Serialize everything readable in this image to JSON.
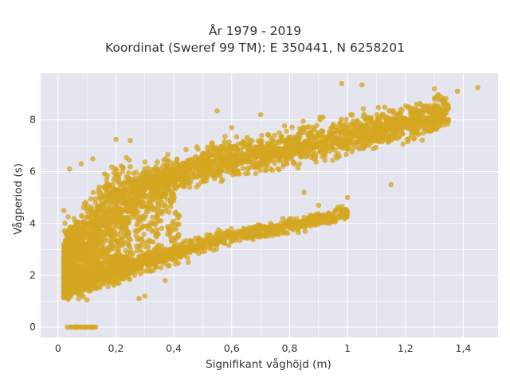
{
  "chart_data": {
    "type": "scatter",
    "title_line1": "År 1979 - 2019",
    "title_line2": "Koordinat (Sweref 99 TM): E 350441, N 6258201",
    "xlabel": "Signifikant våghöjd (m)",
    "ylabel": "Vågperiod (s)",
    "xlim": [
      -0.06,
      1.52
    ],
    "ylim": [
      -0.4,
      9.8
    ],
    "xticks": [
      0,
      0.2,
      0.4,
      0.6,
      0.8,
      1.0,
      1.2,
      1.4
    ],
    "xtick_labels": [
      "0",
      "0,2",
      "0,4",
      "0,6",
      "0,8",
      "1",
      "1,2",
      "1,4"
    ],
    "yticks": [
      0,
      2,
      4,
      6,
      8
    ],
    "ytick_labels": [
      "0",
      "2",
      "4",
      "6",
      "8"
    ],
    "grid": true,
    "colors": {
      "points": "#d4a520",
      "plot_bg": "#e5e5ef",
      "grid": "#ffffff"
    },
    "clusters": [
      {
        "name": "upper band",
        "h_range": [
          0.02,
          1.35
        ],
        "T_mean_at_h": [
          [
            0.02,
            2.6
          ],
          [
            0.2,
            4.9
          ],
          [
            0.4,
            5.9
          ],
          [
            0.6,
            6.5
          ],
          [
            0.8,
            6.9
          ],
          [
            1.0,
            7.4
          ],
          [
            1.2,
            7.9
          ],
          [
            1.35,
            8.3
          ]
        ],
        "spread": 0.6
      },
      {
        "name": "lower band",
        "h_range": [
          0.02,
          1.0
        ],
        "T_mean_at_h": [
          [
            0.02,
            1.6
          ],
          [
            0.2,
            2.2
          ],
          [
            0.4,
            2.9
          ],
          [
            0.6,
            3.5
          ],
          [
            0.8,
            3.9
          ],
          [
            1.0,
            4.4
          ]
        ],
        "spread": 0.25
      },
      {
        "name": "zero-period points",
        "h_range": [
          0.03,
          0.13
        ],
        "T": 0
      }
    ],
    "sample_points": [
      [
        1.45,
        9.25
      ],
      [
        1.3,
        9.2
      ],
      [
        1.38,
        9.1
      ],
      [
        0.98,
        9.4
      ],
      [
        1.05,
        9.35
      ],
      [
        0.7,
        8.2
      ],
      [
        0.55,
        8.35
      ],
      [
        0.6,
        7.7
      ],
      [
        0.9,
        4.7
      ],
      [
        1.0,
        5.0
      ],
      [
        1.15,
        5.5
      ],
      [
        0.85,
        5.2
      ],
      [
        0.2,
        7.25
      ],
      [
        0.25,
        7.2
      ],
      [
        0.12,
        6.5
      ],
      [
        0.08,
        6.3
      ],
      [
        0.04,
        6.1
      ],
      [
        0.02,
        4.5
      ],
      [
        0.3,
        1.2
      ],
      [
        0.28,
        1.1
      ],
      [
        0.1,
        1.05
      ],
      [
        0.05,
        1.3
      ],
      [
        0.37,
        1.8
      ],
      [
        0.45,
        2.5
      ]
    ]
  }
}
